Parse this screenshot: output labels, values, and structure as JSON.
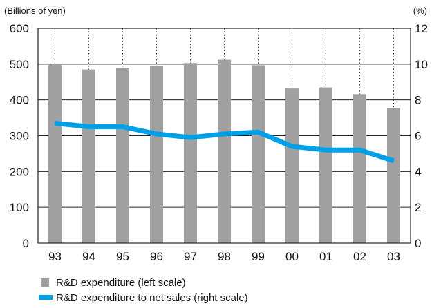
{
  "chart_data": {
    "type": "bar",
    "categories": [
      "93",
      "94",
      "95",
      "96",
      "97",
      "98",
      "99",
      "00",
      "01",
      "02",
      "03"
    ],
    "left_axis": {
      "unit_label": "(Billions of yen)",
      "ylim": [
        0,
        600
      ],
      "ticks": [
        "0",
        "100",
        "200",
        "300",
        "400",
        "500",
        "600"
      ]
    },
    "right_axis": {
      "unit_label": "(%)",
      "ylim": [
        0,
        12
      ],
      "ticks": [
        "0",
        "2",
        "4",
        "6",
        "8",
        "10",
        "12"
      ]
    },
    "series": [
      {
        "name": "R&D expenditure (left scale)",
        "type": "bar",
        "axis": "left",
        "color": "#a0a0a0",
        "values": [
          500,
          485,
          490,
          495,
          503,
          512,
          497,
          432,
          435,
          416,
          377
        ]
      },
      {
        "name": "R&D expenditure to net sales (right scale)",
        "type": "line",
        "axis": "right",
        "color": "#00a0e9",
        "values": [
          6.7,
          6.5,
          6.5,
          6.1,
          5.9,
          6.1,
          6.2,
          5.4,
          5.2,
          5.2,
          4.6
        ]
      }
    ],
    "grid": {
      "horizontal": true,
      "vertical_dotted": true
    },
    "legend_placement": "bottom-left"
  }
}
